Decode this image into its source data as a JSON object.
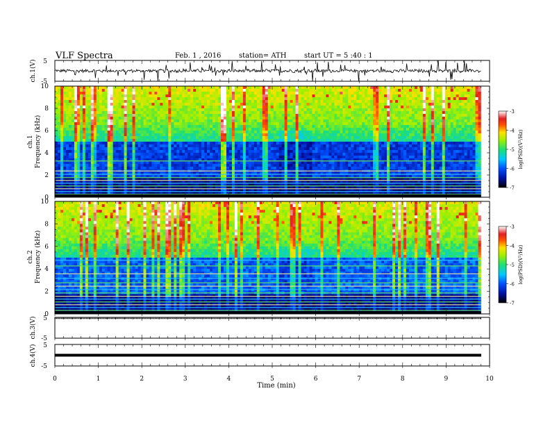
{
  "header": {
    "title": "VLF  Spectra",
    "date": "Feb. 1  , 2016",
    "station": "station= ATH",
    "start": "start  UT  =   5  :40 : 1"
  },
  "chart_data": [
    {
      "type": "line",
      "panel": "ch1-waveform",
      "ylabel": "ch.1(V)",
      "ylim": [
        -5,
        5
      ],
      "yticks": [
        "5",
        "-5"
      ],
      "xlim": [
        0,
        10
      ],
      "data_end_min": 9.8
    },
    {
      "type": "heatmap",
      "panel": "ch1-spectrogram",
      "ylabel_top": "ch.1",
      "ylabel": "Frequency  (kHz)",
      "ylim": [
        0,
        10
      ],
      "yticks": [
        "0",
        "2",
        "4",
        "6",
        "8",
        "10"
      ],
      "colorbar": {
        "label": "log(PSD)(V²/Hz)",
        "range": [
          -7,
          -3
        ],
        "ticks": [
          "-3",
          "-4",
          "-5",
          "-6",
          "-7"
        ]
      }
    },
    {
      "type": "heatmap",
      "panel": "ch2-spectrogram",
      "ylabel_top": "ch.2",
      "ylabel": "Frequency  (kHz)",
      "ylim": [
        0,
        10
      ],
      "yticks": [
        "0",
        "2",
        "4",
        "6",
        "8",
        "10"
      ],
      "colorbar": {
        "label": "log(PSD)(V²/Hz)",
        "range": [
          -7,
          -3
        ],
        "ticks": [
          "-3",
          "-4",
          "-5",
          "-6",
          "-7"
        ]
      }
    },
    {
      "type": "line",
      "panel": "ch3-waveform",
      "ylabel": "ch.3(V)",
      "ylim": [
        -5,
        5
      ],
      "yticks": [
        "5",
        "-5"
      ],
      "level": 5
    },
    {
      "type": "line",
      "panel": "ch4-waveform",
      "ylabel": "ch.4(V)",
      "ylim": [
        -5,
        5
      ],
      "yticks": [
        "5",
        "-5"
      ],
      "level": 0
    }
  ],
  "xaxis": {
    "label": "Time  (min)",
    "ticks": [
      "0",
      "1",
      "2",
      "3",
      "4",
      "5",
      "6",
      "7",
      "8",
      "9",
      "10"
    ],
    "range": [
      0,
      10
    ]
  },
  "colors": {
    "background_dark": "#000010",
    "deep_blue": "#0020c0",
    "green": "#40e040",
    "yellow": "#e0e000",
    "red": "#e01010"
  }
}
